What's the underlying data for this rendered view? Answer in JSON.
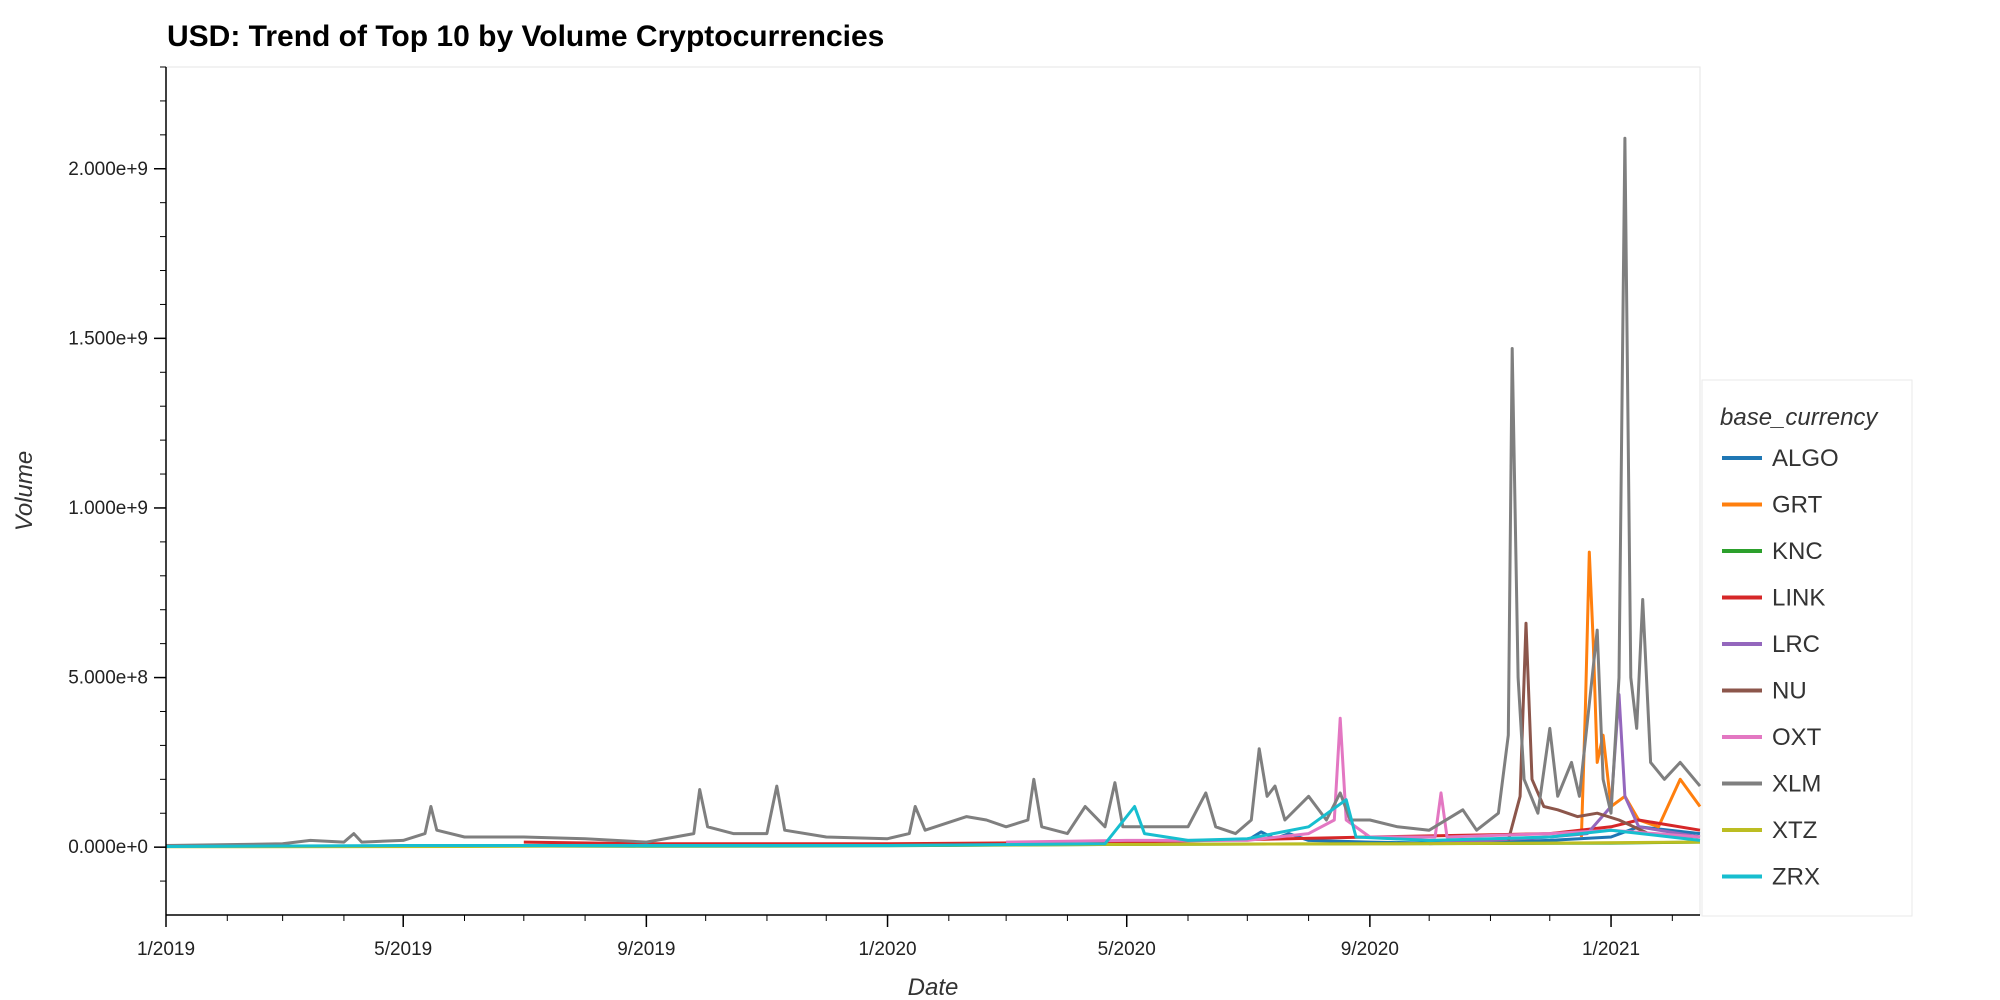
{
  "chart_data": {
    "type": "line",
    "title": "USD: Trend of Top 10 by Volume Cryptocurrencies",
    "xlabel": "Date",
    "ylabel": "Volume",
    "x_range": [
      "2019-01-01",
      "2021-02-15"
    ],
    "ylim": [
      -200000000,
      2300000000
    ],
    "x_ticks": [
      {
        "date": "2019-01-01",
        "label": "1/2019"
      },
      {
        "date": "2019-05-01",
        "label": "5/2019"
      },
      {
        "date": "2019-09-01",
        "label": "9/2019"
      },
      {
        "date": "2020-01-01",
        "label": "1/2020"
      },
      {
        "date": "2020-05-01",
        "label": "5/2020"
      },
      {
        "date": "2020-09-01",
        "label": "9/2020"
      },
      {
        "date": "2021-01-01",
        "label": "1/2021"
      }
    ],
    "y_ticks": [
      {
        "value": 0,
        "label": "0.000e+0"
      },
      {
        "value": 500000000,
        "label": "5.000e+8"
      },
      {
        "value": 1000000000,
        "label": "1.000e+9"
      },
      {
        "value": 1500000000,
        "label": "1.500e+9"
      },
      {
        "value": 2000000000,
        "label": "2.000e+9"
      }
    ],
    "legend": {
      "title": "base_currency",
      "position": "right"
    },
    "series": [
      {
        "name": "ALGO",
        "color": "#1f77b4",
        "points": [
          [
            "2020-07-01",
            20000000
          ],
          [
            "2020-07-08",
            45000000
          ],
          [
            "2020-07-15",
            25000000
          ],
          [
            "2020-07-22",
            40000000
          ],
          [
            "2020-08-01",
            20000000
          ],
          [
            "2020-09-01",
            15000000
          ],
          [
            "2020-10-01",
            12000000
          ],
          [
            "2020-11-01",
            15000000
          ],
          [
            "2020-12-01",
            20000000
          ],
          [
            "2021-01-01",
            30000000
          ],
          [
            "2021-01-15",
            60000000
          ],
          [
            "2021-02-15",
            40000000
          ]
        ]
      },
      {
        "name": "GRT",
        "color": "#ff7f0e",
        "points": [
          [
            "2020-12-17",
            30000000
          ],
          [
            "2020-12-19",
            400000000
          ],
          [
            "2020-12-21",
            870000000
          ],
          [
            "2020-12-23",
            600000000
          ],
          [
            "2020-12-25",
            250000000
          ],
          [
            "2020-12-28",
            330000000
          ],
          [
            "2021-01-01",
            120000000
          ],
          [
            "2021-01-08",
            150000000
          ],
          [
            "2021-01-15",
            80000000
          ],
          [
            "2021-01-25",
            60000000
          ],
          [
            "2021-02-05",
            200000000
          ],
          [
            "2021-02-15",
            120000000
          ]
        ]
      },
      {
        "name": "KNC",
        "color": "#2ca02c",
        "points": [
          [
            "2019-01-01",
            2000000
          ],
          [
            "2019-05-01",
            3000000
          ],
          [
            "2019-09-01",
            3000000
          ],
          [
            "2020-01-01",
            4000000
          ],
          [
            "2020-05-01",
            8000000
          ],
          [
            "2020-09-01",
            10000000
          ],
          [
            "2021-01-01",
            12000000
          ],
          [
            "2021-02-15",
            15000000
          ]
        ]
      },
      {
        "name": "LINK",
        "color": "#d62728",
        "points": [
          [
            "2019-07-01",
            15000000
          ],
          [
            "2019-09-01",
            10000000
          ],
          [
            "2020-01-01",
            10000000
          ],
          [
            "2020-05-01",
            15000000
          ],
          [
            "2020-09-01",
            30000000
          ],
          [
            "2020-12-01",
            40000000
          ],
          [
            "2021-01-01",
            60000000
          ],
          [
            "2021-01-15",
            80000000
          ],
          [
            "2021-02-15",
            50000000
          ]
        ]
      },
      {
        "name": "LRC",
        "color": "#9467bd",
        "points": [
          [
            "2020-10-01",
            10000000
          ],
          [
            "2020-11-01",
            20000000
          ],
          [
            "2020-12-01",
            30000000
          ],
          [
            "2020-12-20",
            40000000
          ],
          [
            "2021-01-01",
            120000000
          ],
          [
            "2021-01-05",
            450000000
          ],
          [
            "2021-01-08",
            150000000
          ],
          [
            "2021-01-15",
            60000000
          ],
          [
            "2021-02-15",
            30000000
          ]
        ]
      },
      {
        "name": "NU",
        "color": "#8c564b",
        "points": [
          [
            "2020-11-10",
            20000000
          ],
          [
            "2020-11-16",
            150000000
          ],
          [
            "2020-11-19",
            660000000
          ],
          [
            "2020-11-22",
            200000000
          ],
          [
            "2020-11-28",
            120000000
          ],
          [
            "2020-12-05",
            110000000
          ],
          [
            "2020-12-15",
            90000000
          ],
          [
            "2020-12-25",
            100000000
          ],
          [
            "2021-01-05",
            80000000
          ],
          [
            "2021-01-20",
            40000000
          ],
          [
            "2021-02-15",
            30000000
          ]
        ]
      },
      {
        "name": "OXT",
        "color": "#e377c2",
        "points": [
          [
            "2020-03-01",
            15000000
          ],
          [
            "2020-05-01",
            20000000
          ],
          [
            "2020-07-01",
            20000000
          ],
          [
            "2020-08-01",
            40000000
          ],
          [
            "2020-08-14",
            80000000
          ],
          [
            "2020-08-17",
            380000000
          ],
          [
            "2020-08-20",
            80000000
          ],
          [
            "2020-09-01",
            30000000
          ],
          [
            "2020-10-04",
            30000000
          ],
          [
            "2020-10-07",
            160000000
          ],
          [
            "2020-10-10",
            30000000
          ],
          [
            "2020-12-01",
            40000000
          ],
          [
            "2021-01-01",
            50000000
          ],
          [
            "2021-02-15",
            30000000
          ]
        ]
      },
      {
        "name": "XLM",
        "color": "#7f7f7f",
        "points": [
          [
            "2019-01-01",
            5000000
          ],
          [
            "2019-03-01",
            10000000
          ],
          [
            "2019-03-15",
            20000000
          ],
          [
            "2019-04-01",
            15000000
          ],
          [
            "2019-04-06",
            40000000
          ],
          [
            "2019-04-10",
            15000000
          ],
          [
            "2019-05-01",
            20000000
          ],
          [
            "2019-05-12",
            40000000
          ],
          [
            "2019-05-15",
            120000000
          ],
          [
            "2019-05-18",
            50000000
          ],
          [
            "2019-06-01",
            30000000
          ],
          [
            "2019-07-01",
            30000000
          ],
          [
            "2019-08-01",
            25000000
          ],
          [
            "2019-09-01",
            15000000
          ],
          [
            "2019-09-25",
            40000000
          ],
          [
            "2019-09-28",
            170000000
          ],
          [
            "2019-10-02",
            60000000
          ],
          [
            "2019-10-15",
            40000000
          ],
          [
            "2019-11-01",
            40000000
          ],
          [
            "2019-11-06",
            180000000
          ],
          [
            "2019-11-10",
            50000000
          ],
          [
            "2019-12-01",
            30000000
          ],
          [
            "2020-01-01",
            25000000
          ],
          [
            "2020-01-12",
            40000000
          ],
          [
            "2020-01-15",
            120000000
          ],
          [
            "2020-01-20",
            50000000
          ],
          [
            "2020-02-10",
            90000000
          ],
          [
            "2020-02-20",
            80000000
          ],
          [
            "2020-03-01",
            60000000
          ],
          [
            "2020-03-12",
            80000000
          ],
          [
            "2020-03-15",
            200000000
          ],
          [
            "2020-03-19",
            60000000
          ],
          [
            "2020-04-01",
            40000000
          ],
          [
            "2020-04-10",
            120000000
          ],
          [
            "2020-04-20",
            60000000
          ],
          [
            "2020-04-25",
            190000000
          ],
          [
            "2020-04-29",
            60000000
          ],
          [
            "2020-05-15",
            60000000
          ],
          [
            "2020-06-01",
            60000000
          ],
          [
            "2020-06-10",
            160000000
          ],
          [
            "2020-06-15",
            60000000
          ],
          [
            "2020-06-25",
            40000000
          ],
          [
            "2020-07-03",
            80000000
          ],
          [
            "2020-07-07",
            290000000
          ],
          [
            "2020-07-11",
            150000000
          ],
          [
            "2020-07-15",
            180000000
          ],
          [
            "2020-07-20",
            80000000
          ],
          [
            "2020-08-01",
            150000000
          ],
          [
            "2020-08-10",
            80000000
          ],
          [
            "2020-08-17",
            160000000
          ],
          [
            "2020-08-22",
            80000000
          ],
          [
            "2020-09-01",
            80000000
          ],
          [
            "2020-09-15",
            60000000
          ],
          [
            "2020-10-01",
            50000000
          ],
          [
            "2020-10-18",
            110000000
          ],
          [
            "2020-10-25",
            50000000
          ],
          [
            "2020-11-05",
            100000000
          ],
          [
            "2020-11-10",
            330000000
          ],
          [
            "2020-11-12",
            1470000000
          ],
          [
            "2020-11-15",
            500000000
          ],
          [
            "2020-11-18",
            200000000
          ],
          [
            "2020-11-25",
            100000000
          ],
          [
            "2020-12-01",
            350000000
          ],
          [
            "2020-12-05",
            150000000
          ],
          [
            "2020-12-12",
            250000000
          ],
          [
            "2020-12-16",
            150000000
          ],
          [
            "2020-12-25",
            640000000
          ],
          [
            "2020-12-28",
            200000000
          ],
          [
            "2021-01-01",
            100000000
          ],
          [
            "2021-01-05",
            500000000
          ],
          [
            "2021-01-08",
            2090000000
          ],
          [
            "2021-01-11",
            500000000
          ],
          [
            "2021-01-14",
            350000000
          ],
          [
            "2021-01-17",
            730000000
          ],
          [
            "2021-01-21",
            250000000
          ],
          [
            "2021-01-28",
            200000000
          ],
          [
            "2021-02-05",
            250000000
          ],
          [
            "2021-02-15",
            180000000
          ]
        ]
      },
      {
        "name": "XTZ",
        "color": "#bcbd22",
        "points": [
          [
            "2019-01-01",
            1000000
          ],
          [
            "2019-06-01",
            2000000
          ],
          [
            "2019-09-01",
            5000000
          ],
          [
            "2020-01-01",
            5000000
          ],
          [
            "2020-05-01",
            8000000
          ],
          [
            "2020-09-01",
            10000000
          ],
          [
            "2020-12-01",
            12000000
          ],
          [
            "2021-02-15",
            15000000
          ]
        ]
      },
      {
        "name": "ZRX",
        "color": "#17becf",
        "points": [
          [
            "2019-01-01",
            2000000
          ],
          [
            "2019-05-01",
            5000000
          ],
          [
            "2019-09-01",
            5000000
          ],
          [
            "2020-01-01",
            5000000
          ],
          [
            "2020-04-20",
            10000000
          ],
          [
            "2020-05-05",
            120000000
          ],
          [
            "2020-05-10",
            40000000
          ],
          [
            "2020-06-01",
            20000000
          ],
          [
            "2020-07-01",
            25000000
          ],
          [
            "2020-08-01",
            60000000
          ],
          [
            "2020-08-20",
            140000000
          ],
          [
            "2020-08-25",
            30000000
          ],
          [
            "2020-10-01",
            20000000
          ],
          [
            "2020-11-01",
            25000000
          ],
          [
            "2020-12-01",
            30000000
          ],
          [
            "2021-01-01",
            50000000
          ],
          [
            "2021-02-15",
            20000000
          ]
        ]
      }
    ]
  }
}
